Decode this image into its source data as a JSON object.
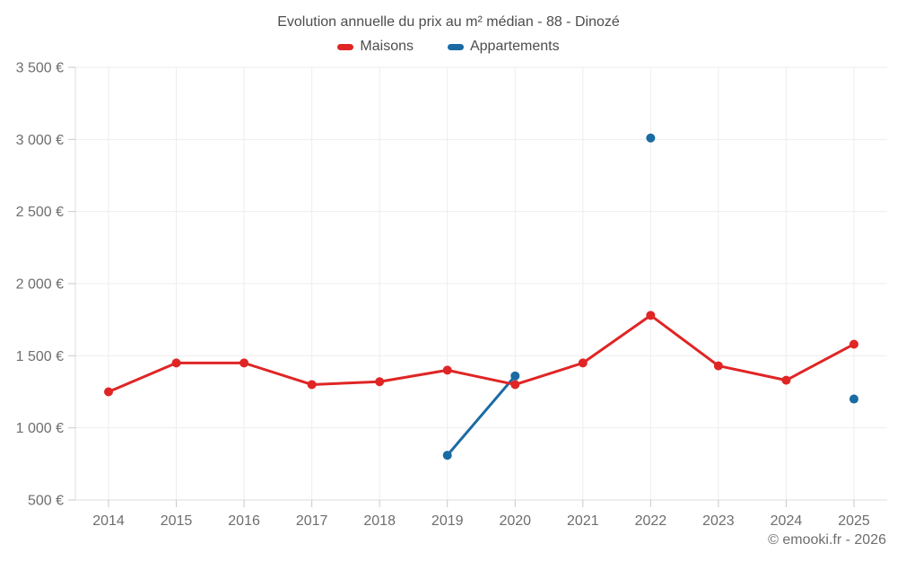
{
  "chart": {
    "title": "Evolution annuelle du prix au m² médian - 88 - Dinozé",
    "watermark": "© emooki.fr - 2026"
  },
  "chart_data": {
    "type": "line",
    "title": "Evolution annuelle du prix au m² médian - 88 - Dinozé",
    "categories": [
      "2014",
      "2015",
      "2016",
      "2017",
      "2018",
      "2019",
      "2020",
      "2021",
      "2022",
      "2023",
      "2024",
      "2025"
    ],
    "series": [
      {
        "name": "Appartements",
        "color": "#1a6ba3",
        "values": [
          null,
          null,
          null,
          null,
          null,
          810,
          1360,
          null,
          3010,
          null,
          null,
          1200
        ]
      },
      {
        "name": "Maisons",
        "color": "#e02525",
        "values": [
          1250,
          1450,
          1450,
          1300,
          1320,
          1400,
          1300,
          1450,
          1780,
          1430,
          1330,
          1580
        ]
      }
    ],
    "legend_order": [
      "Maisons",
      "Appartements"
    ],
    "legend_position": "top",
    "xlabel": "",
    "ylabel": "",
    "ylim": [
      500,
      3500
    ],
    "grid": true,
    "y_ticks": [
      {
        "value": 500,
        "label": "500 €"
      },
      {
        "value": 1000,
        "label": "1 000 €"
      },
      {
        "value": 1500,
        "label": "1 500 €"
      },
      {
        "value": 2000,
        "label": "2 000 €"
      },
      {
        "value": 2500,
        "label": "2 500 €"
      },
      {
        "value": 3000,
        "label": "3 000 €"
      },
      {
        "value": 3500,
        "label": "3 500 €"
      }
    ],
    "watermark": "© emooki.fr - 2026"
  }
}
